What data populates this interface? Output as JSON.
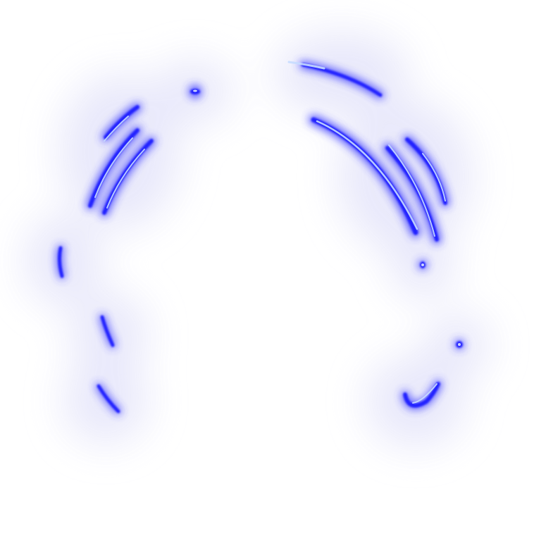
{
  "scene": {
    "background": "#ffffff",
    "effect": "neon-arc-streaks",
    "colors": {
      "core": "#1a1aff",
      "mid": "#3d5cff",
      "highlight": "#b9d4ff",
      "haze": "#e8e8fb"
    },
    "streak_count": 15
  }
}
